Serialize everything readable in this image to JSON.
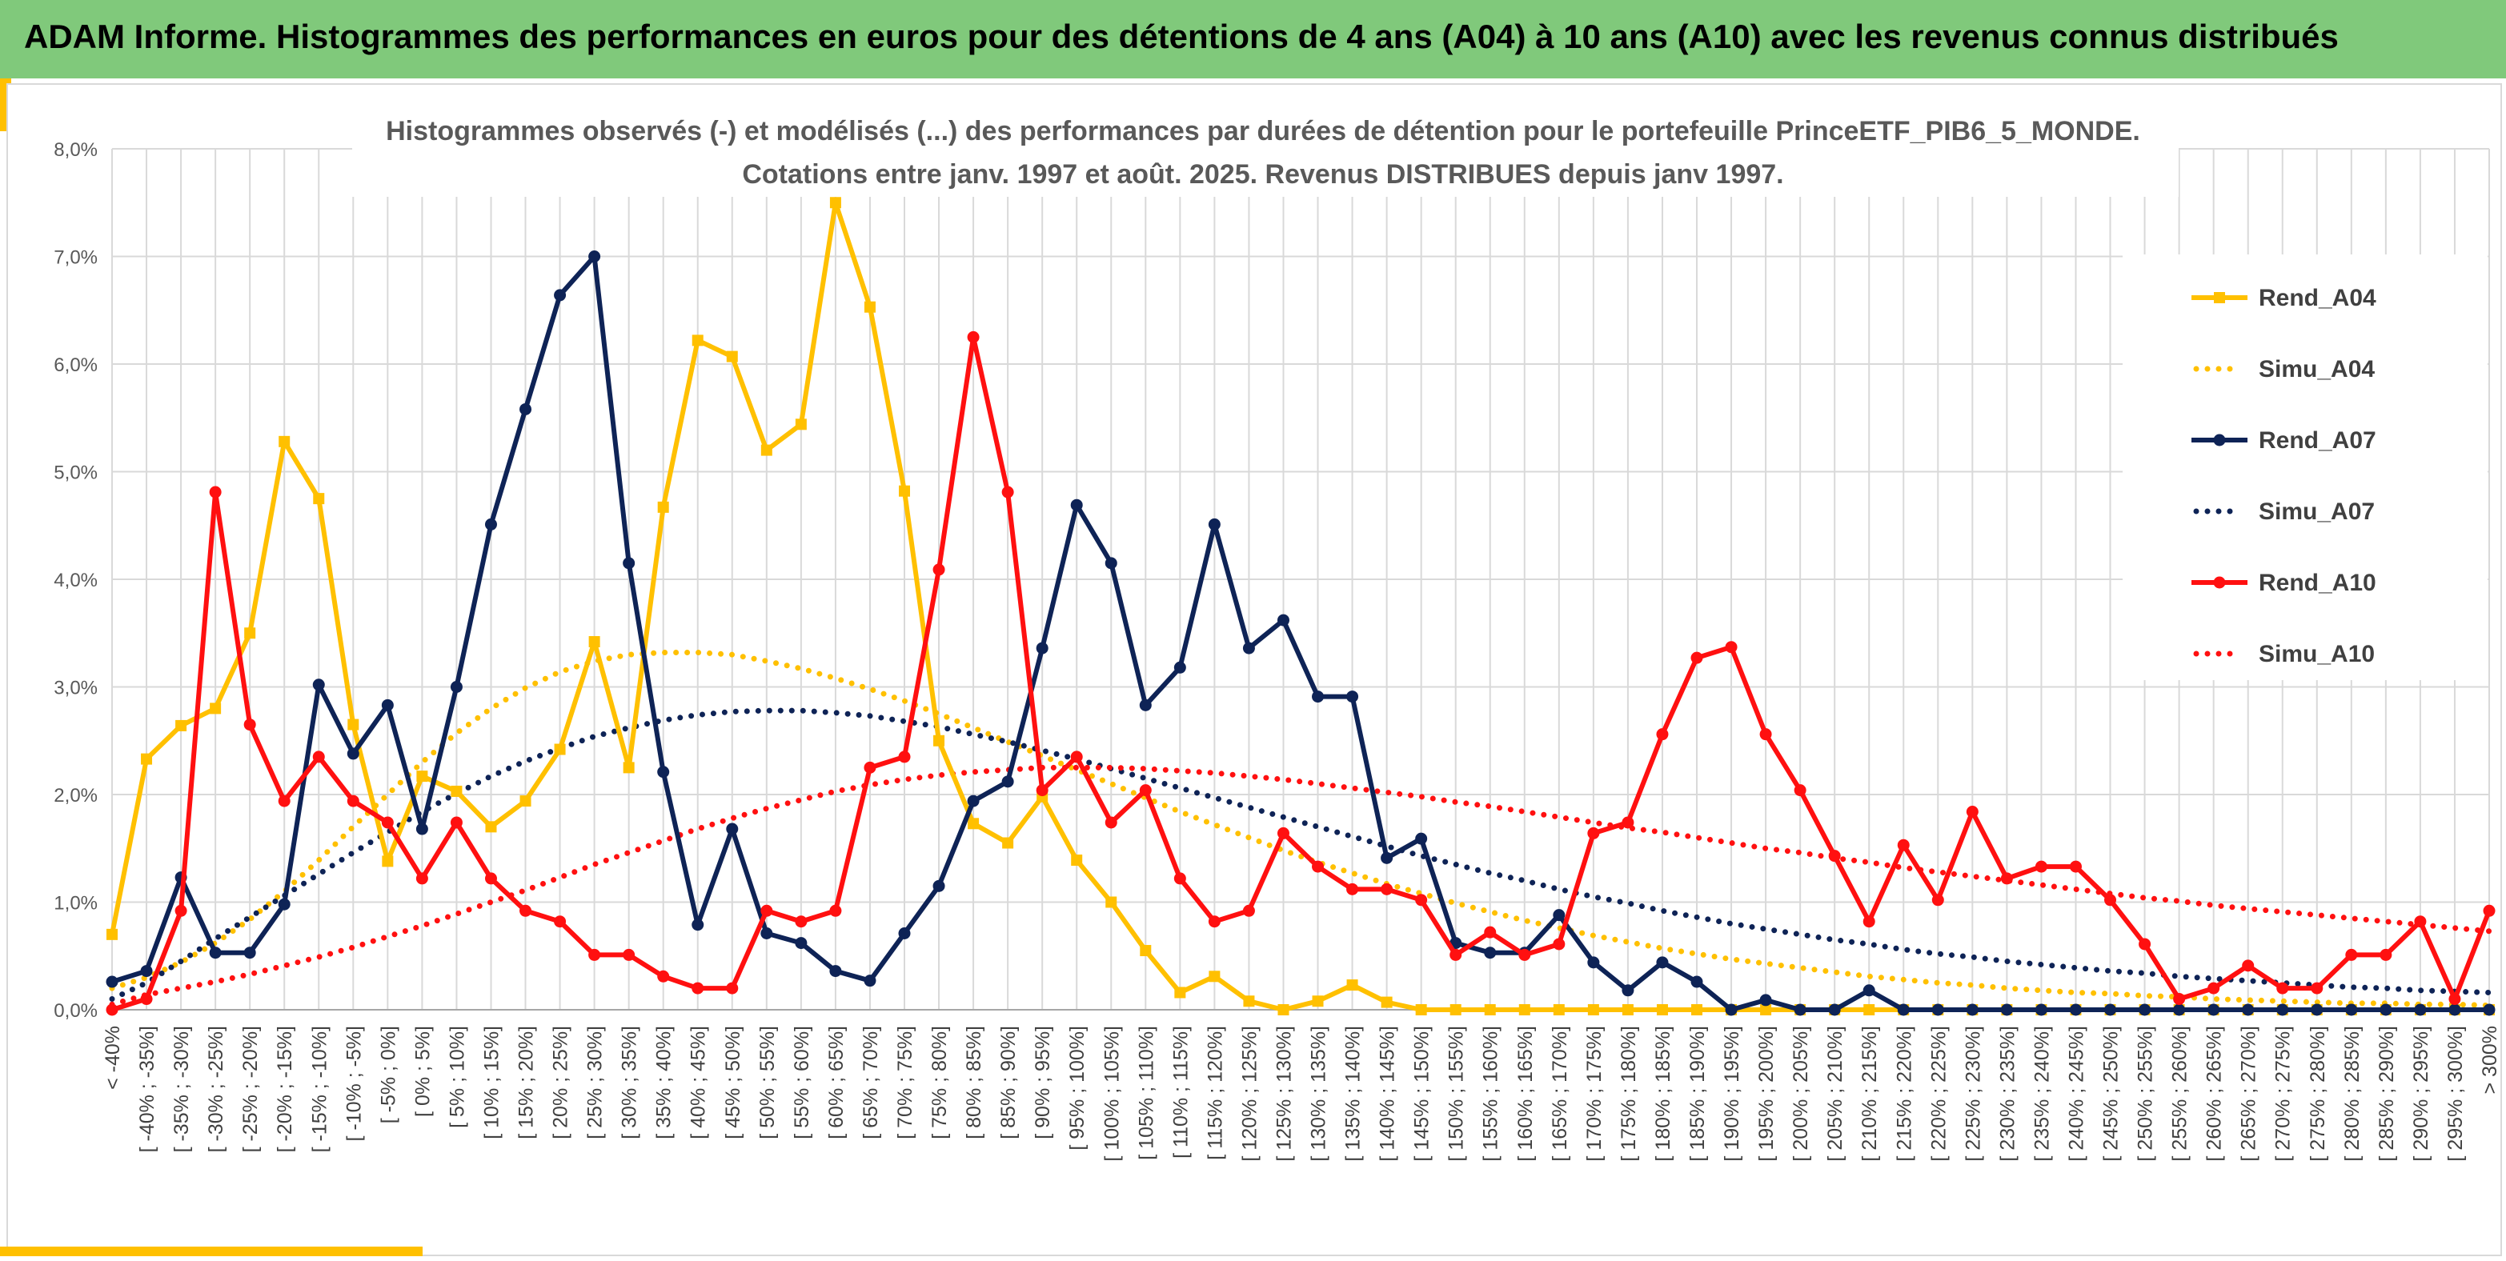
{
  "banner": {
    "title": "ADAM Informe. Histogrammes des performances en euros pour des détentions de 4 ans (A04) à 10 ans (A10) avec les revenus connus distribués"
  },
  "colors": {
    "banner_bg": "#80c97b",
    "accent": "#ffc000",
    "A04": "#ffc000",
    "A07": "#0e2356",
    "A10": "#ff1010"
  },
  "chart_data": {
    "type": "line",
    "title": "Histogrammes observés (-) et modélisés (...) des performances par durées de détention pour le portefeuille PrinceETF_PIB6_5_MONDE.",
    "subtitle": "Cotations entre janv. 1997 et août. 2025. Revenus DISTRIBUES depuis janv 1997.",
    "ylim": [
      0,
      8
    ],
    "yticks": [
      "0,0%",
      "1,0%",
      "2,0%",
      "3,0%",
      "4,0%",
      "5,0%",
      "6,0%",
      "7,0%",
      "8,0%"
    ],
    "grid": true,
    "legend_position": "right",
    "categories": [
      "< -40%",
      "[ -40% ; -35%]",
      "[ -35% ; -30%]",
      "[ -30% ; -25%]",
      "[ -25% ; -20%]",
      "[ -20% ; -15%]",
      "[ -15% ; -10%]",
      "[ -10% ; -5%]",
      "[ -5% ; 0%]",
      "[ 0% ; 5%]",
      "[ 5% ; 10%]",
      "[ 10% ; 15%]",
      "[ 15% ; 20%]",
      "[ 20% ; 25%]",
      "[ 25% ; 30%]",
      "[ 30% ; 35%]",
      "[ 35% ; 40%]",
      "[ 40% ; 45%]",
      "[ 45% ; 50%]",
      "[ 50% ; 55%]",
      "[ 55% ; 60%]",
      "[ 60% ; 65%]",
      "[ 65% ; 70%]",
      "[ 70% ; 75%]",
      "[ 75% ; 80%]",
      "[ 80% ; 85%]",
      "[ 85% ; 90%]",
      "[ 90% ; 95%]",
      "[ 95% ; 100%]",
      "[ 100% ; 105%]",
      "[ 105% ; 110%]",
      "[ 110% ; 115%]",
      "[ 115% ; 120%]",
      "[ 120% ; 125%]",
      "[ 125% ; 130%]",
      "[ 130% ; 135%]",
      "[ 135% ; 140%]",
      "[ 140% ; 145%]",
      "[ 145% ; 150%]",
      "[ 150% ; 155%]",
      "[ 155% ; 160%]",
      "[ 160% ; 165%]",
      "[ 165% ; 170%]",
      "[ 170% ; 175%]",
      "[ 175% ; 180%]",
      "[ 180% ; 185%]",
      "[ 185% ; 190%]",
      "[ 190% ; 195%]",
      "[ 195% ; 200%]",
      "[ 200% ; 205%]",
      "[ 205% ; 210%]",
      "[ 210% ; 215%]",
      "[ 215% ; 220%]",
      "[ 220% ; 225%]",
      "[ 225% ; 230%]",
      "[ 230% ; 235%]",
      "[ 235% ; 240%]",
      "[ 240% ; 245%]",
      "[ 245% ; 250%]",
      "[ 250% ; 255%]",
      "[ 255% ; 260%]",
      "[ 260% ; 265%]",
      "[ 265% ; 270%]",
      "[ 270% ; 275%]",
      "[ 275% ; 280%]",
      "[ 280% ; 285%]",
      "[ 285% ; 290%]",
      "[ 290% ; 295%]",
      "[ 295% ; 300%]",
      "> 300%"
    ],
    "series": [
      {
        "name": "Rend_A04",
        "style": "solid",
        "marker": "square",
        "color": "#ffc000",
        "values": [
          0.7,
          2.33,
          2.64,
          2.8,
          3.5,
          5.28,
          4.75,
          2.65,
          1.38,
          2.17,
          2.03,
          1.7,
          1.94,
          2.42,
          3.42,
          2.25,
          4.67,
          6.22,
          6.07,
          5.2,
          5.44,
          7.5,
          6.53,
          4.82,
          2.5,
          1.73,
          1.55,
          1.98,
          1.39,
          1.0,
          0.55,
          0.16,
          0.31,
          0.08,
          0.0,
          0.08,
          0.23,
          0.07,
          0.0,
          0.0,
          0.0,
          0.0,
          0.0,
          0.0,
          0.0,
          0.0,
          0.0,
          0.0,
          0.0,
          0.0,
          0.0,
          0.0,
          0.0,
          0.0,
          0.0,
          0.0,
          0.0,
          0.0,
          0.0,
          0.0,
          0.0,
          0.0,
          0.0,
          0.0,
          0.0,
          0.0,
          0.0,
          0.0,
          0.0,
          0.0
        ]
      },
      {
        "name": "Simu_A04",
        "style": "dotted",
        "color": "#ffc000",
        "values": [
          0.2,
          0.3,
          0.44,
          0.62,
          0.84,
          1.1,
          1.39,
          1.7,
          2.0,
          2.3,
          2.57,
          2.8,
          2.99,
          3.14,
          3.24,
          3.3,
          3.32,
          3.32,
          3.3,
          3.24,
          3.17,
          3.08,
          2.98,
          2.87,
          2.75,
          2.62,
          2.49,
          2.36,
          2.23,
          2.1,
          1.97,
          1.84,
          1.72,
          1.6,
          1.48,
          1.37,
          1.27,
          1.17,
          1.08,
          0.99,
          0.91,
          0.83,
          0.76,
          0.69,
          0.63,
          0.57,
          0.52,
          0.47,
          0.43,
          0.39,
          0.35,
          0.31,
          0.28,
          0.25,
          0.23,
          0.2,
          0.18,
          0.16,
          0.15,
          0.13,
          0.12,
          0.1,
          0.09,
          0.08,
          0.07,
          0.06,
          0.06,
          0.05,
          0.05,
          0.04
        ]
      },
      {
        "name": "Rend_A07",
        "style": "solid",
        "marker": "circle",
        "color": "#0e2356",
        "values": [
          0.26,
          0.36,
          1.23,
          0.53,
          0.53,
          0.98,
          3.02,
          2.38,
          2.83,
          1.68,
          3.0,
          4.51,
          5.58,
          6.64,
          7.0,
          4.15,
          2.21,
          0.79,
          1.68,
          0.71,
          0.62,
          0.36,
          0.27,
          0.71,
          1.15,
          1.94,
          2.12,
          3.36,
          4.69,
          4.15,
          2.83,
          3.18,
          4.51,
          3.36,
          3.62,
          2.91,
          2.91,
          1.41,
          1.59,
          0.62,
          0.53,
          0.53,
          0.88,
          0.44,
          0.18,
          0.44,
          0.26,
          0.0,
          0.09,
          0.0,
          0.0,
          0.18,
          0.0,
          0.0,
          0.0,
          0.0,
          0.0,
          0.0,
          0.0,
          0.0,
          0.0,
          0.0,
          0.0,
          0.0,
          0.0,
          0.0,
          0.0,
          0.0,
          0.0,
          0.0
        ]
      },
      {
        "name": "Simu_A07",
        "style": "dotted",
        "color": "#0e2356",
        "values": [
          0.1,
          0.25,
          0.45,
          0.66,
          0.86,
          1.06,
          1.26,
          1.46,
          1.65,
          1.84,
          2.01,
          2.17,
          2.31,
          2.43,
          2.54,
          2.62,
          2.69,
          2.74,
          2.77,
          2.78,
          2.78,
          2.76,
          2.73,
          2.68,
          2.63,
          2.56,
          2.49,
          2.41,
          2.33,
          2.24,
          2.15,
          2.06,
          1.97,
          1.88,
          1.79,
          1.7,
          1.61,
          1.52,
          1.43,
          1.35,
          1.27,
          1.2,
          1.12,
          1.05,
          0.99,
          0.92,
          0.86,
          0.8,
          0.75,
          0.7,
          0.65,
          0.61,
          0.56,
          0.52,
          0.49,
          0.45,
          0.42,
          0.39,
          0.36,
          0.34,
          0.31,
          0.29,
          0.27,
          0.25,
          0.23,
          0.21,
          0.2,
          0.18,
          0.17,
          0.16
        ]
      },
      {
        "name": "Rend_A10",
        "style": "solid",
        "marker": "circle",
        "color": "#ff1010",
        "values": [
          0.0,
          0.1,
          0.92,
          4.81,
          2.65,
          1.94,
          2.35,
          1.94,
          1.74,
          1.22,
          1.74,
          1.22,
          0.92,
          0.82,
          0.51,
          0.51,
          0.31,
          0.2,
          0.2,
          0.92,
          0.82,
          0.92,
          2.25,
          2.35,
          4.09,
          6.25,
          4.81,
          2.04,
          2.35,
          1.74,
          2.04,
          1.22,
          0.82,
          0.92,
          1.64,
          1.33,
          1.12,
          1.12,
          1.02,
          0.51,
          0.72,
          0.51,
          0.61,
          1.64,
          1.74,
          2.56,
          3.27,
          3.37,
          2.56,
          2.04,
          1.43,
          0.82,
          1.53,
          1.02,
          1.84,
          1.22,
          1.33,
          1.33,
          1.02,
          0.61,
          0.1,
          0.2,
          0.41,
          0.2,
          0.2,
          0.51,
          0.51,
          0.82,
          0.1,
          0.92
        ]
      },
      {
        "name": "Simu_A10",
        "style": "dotted",
        "color": "#ff1010",
        "values": [
          0.05,
          0.14,
          0.2,
          0.26,
          0.33,
          0.41,
          0.49,
          0.58,
          0.68,
          0.78,
          0.89,
          1.0,
          1.11,
          1.23,
          1.35,
          1.46,
          1.57,
          1.68,
          1.78,
          1.87,
          1.95,
          2.03,
          2.09,
          2.14,
          2.18,
          2.21,
          2.23,
          2.25,
          2.25,
          2.25,
          2.24,
          2.22,
          2.2,
          2.17,
          2.14,
          2.1,
          2.06,
          2.02,
          1.98,
          1.93,
          1.89,
          1.84,
          1.79,
          1.74,
          1.69,
          1.65,
          1.6,
          1.55,
          1.5,
          1.46,
          1.41,
          1.37,
          1.32,
          1.28,
          1.24,
          1.2,
          1.16,
          1.12,
          1.08,
          1.04,
          1.01,
          0.97,
          0.94,
          0.91,
          0.88,
          0.85,
          0.82,
          0.79,
          0.76,
          0.73
        ]
      }
    ]
  }
}
